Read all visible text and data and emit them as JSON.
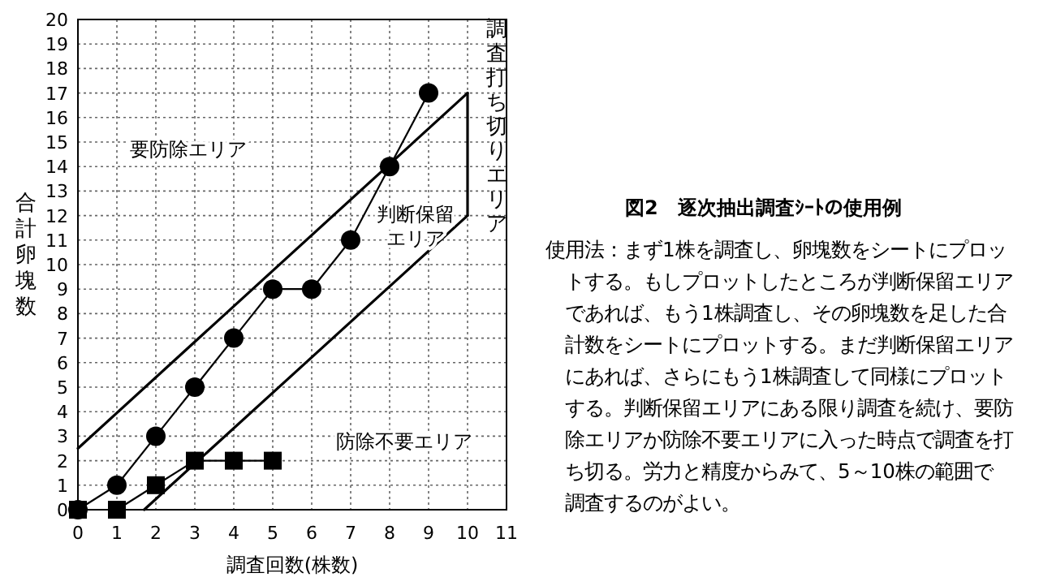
{
  "chart_data": {
    "type": "line",
    "xlabel": "調査回数(株数)",
    "ylabel": "合計卵塊数",
    "xlim": [
      0,
      11
    ],
    "xticks": [
      0,
      1,
      2,
      3,
      4,
      5,
      6,
      7,
      8,
      9,
      10,
      11
    ],
    "ylim": [
      0,
      20
    ],
    "yticks": [
      0,
      1,
      2,
      3,
      4,
      5,
      6,
      7,
      8,
      9,
      10,
      11,
      12,
      13,
      14,
      15,
      16,
      17,
      18,
      19,
      20
    ],
    "grid": true,
    "line_style": "solid",
    "series": [
      {
        "color": "#000000",
        "x": [
          0,
          10
        ],
        "values": [
          2.5,
          17
        ],
        "marker": "none"
      },
      {
        "color": "#000000",
        "x": [
          1.7,
          10
        ],
        "values": [
          0,
          12
        ],
        "marker": "none"
      },
      {
        "color": "#000000",
        "x": [
          10,
          10
        ],
        "values": [
          12,
          17
        ],
        "marker": "none"
      },
      {
        "color": "#000000",
        "x": [
          0,
          1,
          2,
          3,
          4,
          5,
          6,
          7,
          8,
          9
        ],
        "values": [
          0,
          1,
          3,
          5,
          7,
          9,
          9,
          11,
          14,
          17
        ],
        "marker": "circle"
      },
      {
        "color": "#000000",
        "x": [
          0,
          1,
          2,
          3,
          4,
          5
        ],
        "values": [
          0,
          0,
          1,
          2,
          2,
          2
        ],
        "marker": "square"
      }
    ],
    "annotations": [
      "要防除エリア",
      "判断保留エリア",
      "防除不要エリア",
      "調査打ち切りエリア",
      "図2　逐次抽出調査ｼｰﾄの使用例",
      "使用法：まず1株を調査し、卵塊数をシートにプロットする。もしプロットしたところが判断保留エリアであれば、もう1株調査し、その卵塊数を足した合計数をシートにプロットする。まだ判断保留エリアにあれば、さらにもう1株調査して同様にプロットする。判断保留エリアにある限り調査を続け、要防除エリアか防除不要エリアに入った時点で調査を打ち切る。労力と精度からみて、5～10株の範囲で調査するのがよい。"
    ]
  }
}
